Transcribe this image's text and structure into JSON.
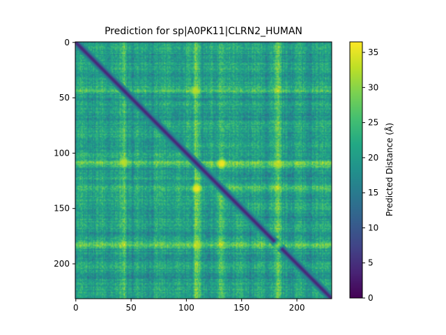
{
  "chart_data": {
    "type": "heatmap",
    "title": "Prediction for sp|A0PK11|CLRN2_HUMAN",
    "xlabel": "",
    "ylabel": "",
    "matrix_size": 232,
    "x_ticks": [
      0,
      50,
      100,
      150,
      200
    ],
    "y_ticks": [
      0,
      50,
      100,
      150,
      200
    ],
    "x_range": [
      0,
      232
    ],
    "y_range": [
      0,
      232
    ],
    "y_inverted": true,
    "colorbar": {
      "label": "Predicted Distance (Å)",
      "range": [
        0,
        36.5
      ],
      "ticks": [
        0,
        5,
        10,
        15,
        20,
        25,
        30,
        35
      ],
      "colormap": "viridis"
    },
    "background_level": 20,
    "diagonal_value": 3.5,
    "high_distance_residues": [
      43,
      108,
      110,
      132,
      183
    ],
    "high_distance_bands": [
      {
        "row": 183,
        "col": 183,
        "value": 31
      },
      {
        "row": 108,
        "col": 43,
        "value": 34
      },
      {
        "row": 108,
        "col": 132,
        "value": 35
      },
      {
        "row": 132,
        "col": 110,
        "value": 36
      },
      {
        "row": 183,
        "col": 110,
        "value": 32
      },
      {
        "row": 45,
        "col": 108,
        "value": 32
      }
    ]
  }
}
